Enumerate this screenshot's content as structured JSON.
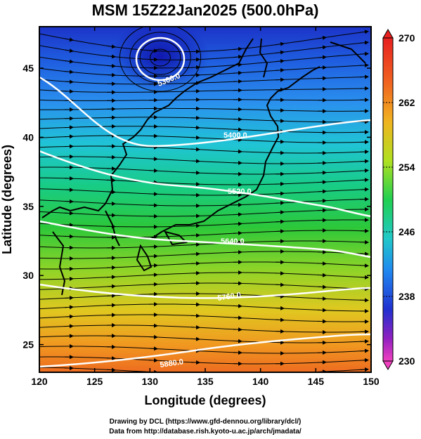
{
  "title": "MSM 15Z22Jan2025 (500.0hPa)",
  "xlabel": "Longitude (degrees)",
  "ylabel": "Latitude  (degrees)",
  "colorbar": {
    "ticks": [
      270,
      262,
      254,
      246,
      238,
      230
    ],
    "colors": [
      "#f02020",
      "#f07020",
      "#f0c020",
      "#a0e020",
      "#20d040",
      "#20c0c0",
      "#2080f0",
      "#2030d0",
      "#a020c0",
      "#f040c0"
    ]
  },
  "chart_data": {
    "type": "map",
    "xlim": [
      120,
      150
    ],
    "ylim": [
      23,
      48
    ],
    "xticks": [
      120,
      125,
      130,
      135,
      140,
      145,
      150
    ],
    "yticks": [
      25,
      30,
      35,
      40,
      45
    ],
    "contours": [
      {
        "label": "5300.0"
      },
      {
        "label": "5400.0"
      },
      {
        "label": "5520.0"
      },
      {
        "label": "5640.0"
      },
      {
        "label": "5760.0"
      },
      {
        "label": "5880.0"
      }
    ]
  },
  "credits": {
    "line1": "Drawing by DCL (https://www.gfd-dennou.org/library/dcl/)",
    "line2": "Data from http://database.rish.kyoto-u.ac.jp/arch/jmadata/"
  }
}
